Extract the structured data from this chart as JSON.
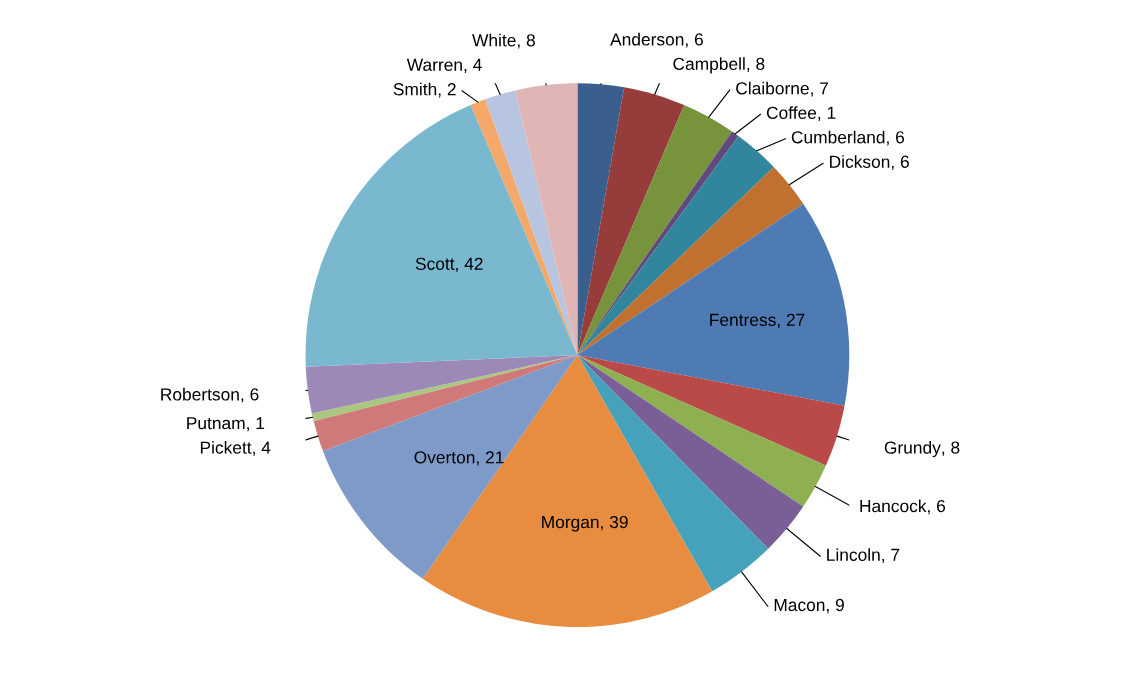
{
  "chart_data": {
    "type": "pie",
    "categories": [
      "Anderson",
      "Campbell",
      "Claiborne",
      "Coffee",
      "Cumberland",
      "Dickson",
      "Fentress",
      "Grundy",
      "Hancock",
      "Lincoln",
      "Macon",
      "Morgan",
      "Overton",
      "Pickett",
      "Putnam",
      "Robertson",
      "Scott",
      "Smith",
      "Warren",
      "White"
    ],
    "values": [
      6,
      8,
      7,
      1,
      6,
      6,
      27,
      8,
      6,
      7,
      9,
      39,
      21,
      4,
      1,
      6,
      42,
      2,
      4,
      8
    ],
    "value_labels": [
      ", 6",
      ", 8",
      ", 7",
      ", 1",
      ", 6",
      ", 6",
      ", 27",
      ", 8",
      ", 6",
      ", 7",
      ", 9",
      ", 39",
      ", 21",
      ", 4",
      ", 1",
      ", 6",
      ", 42",
      ", 2",
      ", 4",
      ", 8"
    ],
    "colors": [
      "#3a5f8f",
      "#963c3a",
      "#77933c",
      "#604a7b",
      "#31859c",
      "#c0712f",
      "#4f7bb4",
      "#b94a48",
      "#8eb050",
      "#7a5e98",
      "#46a2ba",
      "#e88c3f",
      "#7e9ac8",
      "#cf7a78",
      "#a9c77e",
      "#9d89b8",
      "#7ab8cf",
      "#f4a96b",
      "#b8c5e0",
      "#dfb6b5"
    ],
    "legend": false
  }
}
